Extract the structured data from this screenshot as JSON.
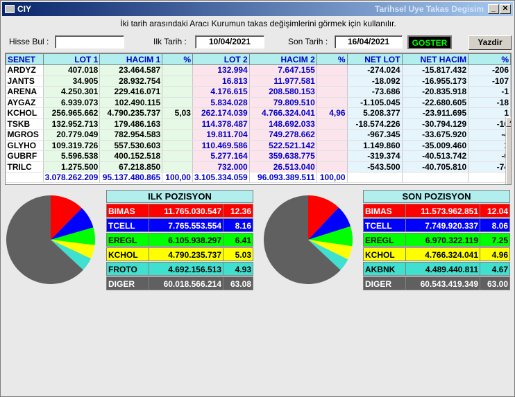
{
  "window": {
    "title": "CIY",
    "subtitle": "Tarihsel Uye Takas Degisim"
  },
  "info_text": "İki tarih arasındaki  Aracı Kurumun takas değişimlerini görmek için kullanılır.",
  "filters": {
    "hisse_label": "Hisse Bul :",
    "hisse_value": "",
    "ilk_label": "Ilk Tarih :",
    "ilk_value": "10/04/2021",
    "son_label": "Son Tarih :",
    "son_value": "16/04/2021",
    "goster_label": "GOSTER",
    "yazdir_label": "Yazdir"
  },
  "table": {
    "headers": [
      "SENET",
      "LOT 1",
      "HACIM 1",
      "%",
      "LOT 2",
      "HACIM 2",
      "%",
      "NET LOT",
      "NET HACIM",
      "%"
    ],
    "rows": [
      [
        "ARDYZ",
        "407.018",
        "23.464.587",
        "",
        "132.994",
        "7.647.155",
        "",
        "-274.024",
        "-15.817.432",
        "-206"
      ],
      [
        "JANTS",
        "34.905",
        "28.932.754",
        "",
        "16.813",
        "11.977.581",
        "",
        "-18.092",
        "-16.955.173",
        "-107"
      ],
      [
        "ARENA",
        "4.250.301",
        "229.416.071",
        "",
        "4.176.615",
        "208.580.153",
        "",
        "-73.686",
        "-20.835.918",
        "-1"
      ],
      [
        "AYGAZ",
        "6.939.073",
        "102.490.115",
        "",
        "5.834.028",
        "79.809.510",
        "",
        "-1.105.045",
        "-22.680.605",
        "-18"
      ],
      [
        "KCHOL",
        "256.965.662",
        "4.790.235.737",
        "5,03",
        "262.174.039",
        "4.766.324.041",
        "4,96",
        "5.208.377",
        "-23.911.695",
        "1"
      ],
      [
        "TSKB",
        "132.952.713",
        "179.486.163",
        "",
        "114.378.487",
        "148.692.033",
        "",
        "-18.574.226",
        "-30.794.129",
        "-16"
      ],
      [
        "MGROS",
        "20.779.049",
        "782.954.583",
        "",
        "19.811.704",
        "749.278.662",
        "",
        "-967.345",
        "-33.675.920",
        "-4"
      ],
      [
        "GLYHO",
        "109.319.726",
        "557.530.603",
        "",
        "110.469.586",
        "522.521.142",
        "",
        "1.149.860",
        "-35.009.460",
        "1"
      ],
      [
        "GUBRF",
        "5.596.538",
        "400.152.518",
        "",
        "5.277.164",
        "359.638.775",
        "",
        "-319.374",
        "-40.513.742",
        "-6"
      ],
      [
        "TRILC",
        "1.275.500",
        "67.218.850",
        "",
        "732.000",
        "26.513.040",
        "",
        "-543.500",
        "-40.705.810",
        "-74"
      ]
    ],
    "totals": [
      "",
      "3.078.262.209",
      "95.137.480.865",
      "100,00",
      "3.105.334.059",
      "96.093.389.511",
      "100,00",
      "",
      "",
      ""
    ]
  },
  "ilk_pozisyon": {
    "title": "ILK POZISYON",
    "items": [
      {
        "name": "BIMAS",
        "value": "11.765.030.547",
        "pct": "12.36",
        "color": "#ff0000",
        "text": "#ffffff",
        "share": 12.36
      },
      {
        "name": "TCELL",
        "value": "7.765.553.554",
        "pct": "8.16",
        "color": "#0000ff",
        "text": "#ffffff",
        "share": 8.16
      },
      {
        "name": "EREGL",
        "value": "6.105.938.297",
        "pct": "6.41",
        "color": "#00ff00",
        "text": "#000000",
        "share": 6.41
      },
      {
        "name": "KCHOL",
        "value": "4.790.235.737",
        "pct": "5.03",
        "color": "#ffff00",
        "text": "#000000",
        "share": 5.03
      },
      {
        "name": "FROTO",
        "value": "4.692.156.513",
        "pct": "4.93",
        "color": "#40e0d0",
        "text": "#000000",
        "share": 4.93
      },
      {
        "name": "DIGER",
        "value": "60.018.566.214",
        "pct": "63.08",
        "color": "#606060",
        "text": "#ffffff",
        "share": 63.08
      }
    ]
  },
  "son_pozisyon": {
    "title": "SON POZISYON",
    "items": [
      {
        "name": "BIMAS",
        "value": "11.573.962.851",
        "pct": "12.04",
        "color": "#ff0000",
        "text": "#ffffff",
        "share": 12.04
      },
      {
        "name": "TCELL",
        "value": "7.749.920.337",
        "pct": "8.06",
        "color": "#0000ff",
        "text": "#ffffff",
        "share": 8.06
      },
      {
        "name": "EREGL",
        "value": "6.970.322.119",
        "pct": "7.25",
        "color": "#00ff00",
        "text": "#000000",
        "share": 7.25
      },
      {
        "name": "KCHOL",
        "value": "4.766.324.041",
        "pct": "4.96",
        "color": "#ffff00",
        "text": "#000000",
        "share": 4.96
      },
      {
        "name": "AKBNK",
        "value": "4.489.440.811",
        "pct": "4.67",
        "color": "#40e0d0",
        "text": "#000000",
        "share": 4.67
      },
      {
        "name": "DIGER",
        "value": "60.543.419.349",
        "pct": "63.00",
        "color": "#606060",
        "text": "#ffffff",
        "share": 63.0
      }
    ]
  }
}
